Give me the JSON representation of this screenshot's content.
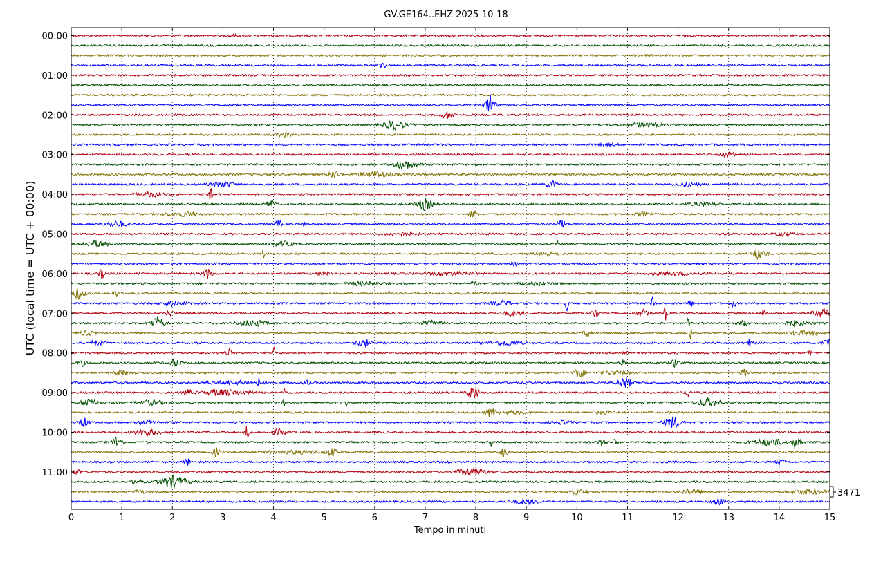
{
  "chart_data": {
    "type": "line",
    "title": "GV.GE164..EHZ 2025-10-18",
    "xlabel": "Tempo in minuti",
    "ylabel": "UTC (local time = UTC + 00:00)",
    "xlim": [
      0,
      15
    ],
    "x_ticks": [
      "0",
      "1",
      "2",
      "3",
      "4",
      "5",
      "6",
      "7",
      "8",
      "9",
      "10",
      "11",
      "12",
      "13",
      "14",
      "15"
    ],
    "y_ticks": [
      "00:00",
      "01:00",
      "02:00",
      "03:00",
      "04:00",
      "05:00",
      "06:00",
      "07:00",
      "08:00",
      "09:00",
      "10:00",
      "11:00"
    ],
    "grid": "vertical dotted lines at each minute",
    "colors": [
      "#b00010",
      "#004d00",
      "#7f7000",
      "#0000ff"
    ],
    "scale_label": "3471",
    "series": [
      {
        "row": 0,
        "events": [
          [
            3.2,
            1.0,
            0.1
          ]
        ]
      },
      {
        "row": 1,
        "events": []
      },
      {
        "row": 2,
        "events": []
      },
      {
        "row": 3,
        "events": [
          [
            6.15,
            5,
            0.07
          ]
        ]
      },
      {
        "row": 4,
        "events": []
      },
      {
        "row": 5,
        "events": []
      },
      {
        "row": 6,
        "events": []
      },
      {
        "row": 7,
        "events": [
          [
            8.28,
            14,
            0.09
          ]
        ]
      },
      {
        "row": 8,
        "events": [
          [
            7.45,
            5,
            0.12
          ]
        ]
      },
      {
        "row": 9,
        "events": [
          [
            6.4,
            6,
            0.2
          ],
          [
            11.3,
            2.5,
            0.45
          ]
        ]
      },
      {
        "row": 10,
        "events": [
          [
            4.2,
            3,
            0.15
          ]
        ]
      },
      {
        "row": 11,
        "events": [
          [
            10.6,
            1.5,
            0.2
          ]
        ]
      },
      {
        "row": 12,
        "events": [
          [
            13.0,
            2.5,
            0.15
          ]
        ]
      },
      {
        "row": 13,
        "events": [
          [
            6.6,
            6,
            0.2
          ]
        ]
      },
      {
        "row": 14,
        "events": [
          [
            5.2,
            5,
            0.1
          ],
          [
            6.0,
            4,
            0.3
          ]
        ]
      },
      {
        "row": 15,
        "events": [
          [
            3.0,
            4,
            0.2
          ],
          [
            9.5,
            5,
            0.1
          ],
          [
            12.2,
            2.5,
            0.2
          ]
        ]
      },
      {
        "row": 16,
        "events": [
          [
            1.6,
            3,
            0.25
          ],
          [
            2.75,
            9,
            0.05
          ]
        ]
      },
      {
        "row": 17,
        "events": [
          [
            3.95,
            6,
            0.08
          ],
          [
            6.98,
            8,
            0.14
          ],
          [
            12.5,
            1.5,
            0.3
          ]
        ]
      },
      {
        "row": 18,
        "events": [
          [
            2.2,
            3,
            0.3
          ],
          [
            7.95,
            6,
            0.07
          ],
          [
            11.3,
            3,
            0.1
          ]
        ]
      },
      {
        "row": 19,
        "events": [
          [
            0.9,
            4,
            0.2
          ],
          [
            4.1,
            5,
            0.06
          ],
          [
            4.6,
            6,
            0.02
          ],
          [
            9.7,
            6,
            0.08
          ]
        ]
      },
      {
        "row": 20,
        "events": [
          [
            6.5,
            2,
            0.3
          ],
          [
            14.1,
            3,
            0.15
          ]
        ]
      },
      {
        "row": 21,
        "events": [
          [
            0.5,
            4,
            0.25
          ],
          [
            4.2,
            3,
            0.2
          ],
          [
            9.6,
            6,
            0.03
          ]
        ]
      },
      {
        "row": 22,
        "events": [
          [
            3.8,
            8,
            0.02
          ],
          [
            9.4,
            3,
            0.2
          ],
          [
            13.6,
            8,
            0.12
          ]
        ]
      },
      {
        "row": 23,
        "events": [
          [
            8.75,
            5,
            0.07
          ]
        ]
      },
      {
        "row": 24,
        "events": [
          [
            0.6,
            6,
            0.07
          ],
          [
            2.7,
            6,
            0.1
          ],
          [
            5.0,
            2,
            0.15
          ],
          [
            7.5,
            2,
            0.4
          ],
          [
            12.0,
            2,
            0.5
          ]
        ]
      },
      {
        "row": 25,
        "events": [
          [
            5.8,
            3,
            0.3
          ],
          [
            7.98,
            4,
            0.06
          ],
          [
            9.2,
            2,
            0.4
          ]
        ]
      },
      {
        "row": 26,
        "events": [
          [
            0.15,
            7,
            0.12
          ],
          [
            0.9,
            5,
            0.07
          ],
          [
            6.3,
            5,
            0.02
          ]
        ]
      },
      {
        "row": 27,
        "events": [
          [
            2.0,
            3,
            0.2
          ],
          [
            8.5,
            3,
            0.2
          ],
          [
            9.8,
            10,
            0.03
          ],
          [
            11.5,
            10,
            0.03
          ],
          [
            12.25,
            4,
            0.07
          ],
          [
            13.1,
            9,
            0.03
          ]
        ]
      },
      {
        "row": 28,
        "events": [
          [
            1.95,
            3,
            0.1
          ],
          [
            8.7,
            3,
            0.2
          ],
          [
            10.35,
            7,
            0.06
          ],
          [
            11.3,
            5,
            0.1
          ],
          [
            11.75,
            10,
            0.03
          ],
          [
            13.7,
            6,
            0.05
          ],
          [
            14.85,
            8,
            0.15
          ]
        ]
      },
      {
        "row": 29,
        "events": [
          [
            1.7,
            9,
            0.12
          ],
          [
            3.6,
            4,
            0.25
          ],
          [
            7.1,
            3,
            0.2
          ],
          [
            13.3,
            4,
            0.07
          ],
          [
            14.3,
            3,
            0.3
          ],
          [
            12.2,
            8,
            0.02
          ]
        ]
      },
      {
        "row": 30,
        "events": [
          [
            0.3,
            3,
            0.15
          ],
          [
            10.2,
            5,
            0.08
          ],
          [
            14.5,
            3,
            0.3
          ],
          [
            12.25,
            8,
            0.02
          ]
        ]
      },
      {
        "row": 31,
        "events": [
          [
            0.5,
            3,
            0.15
          ],
          [
            5.8,
            5,
            0.15
          ],
          [
            8.6,
            3,
            0.3
          ],
          [
            13.4,
            5,
            0.07
          ],
          [
            14.95,
            6,
            0.08
          ]
        ]
      },
      {
        "row": 32,
        "events": [
          [
            3.1,
            6,
            0.07
          ],
          [
            10.95,
            4,
            0.05
          ],
          [
            14.6,
            6,
            0.03
          ],
          [
            4.0,
            14,
            0.02
          ]
        ]
      },
      {
        "row": 33,
        "events": [
          [
            0.2,
            5,
            0.06
          ],
          [
            2.05,
            5,
            0.1
          ],
          [
            11.95,
            6,
            0.07
          ],
          [
            10.9,
            4,
            0.05
          ]
        ]
      },
      {
        "row": 34,
        "events": [
          [
            1.0,
            3,
            0.15
          ],
          [
            10.05,
            7,
            0.1
          ],
          [
            13.3,
            5,
            0.06
          ],
          [
            10.75,
            2,
            0.3
          ]
        ]
      },
      {
        "row": 35,
        "events": [
          [
            3.2,
            2,
            0.6
          ],
          [
            4.65,
            4,
            0.05
          ],
          [
            10.95,
            8,
            0.12
          ],
          [
            3.7,
            7,
            0.02
          ]
        ]
      },
      {
        "row": 36,
        "events": [
          [
            2.3,
            6,
            0.06
          ],
          [
            3.0,
            4,
            0.4
          ],
          [
            7.95,
            10,
            0.1
          ],
          [
            12.2,
            7,
            0.05
          ],
          [
            4.2,
            9,
            0.02
          ]
        ]
      },
      {
        "row": 37,
        "events": [
          [
            0.35,
            6,
            0.15
          ],
          [
            1.6,
            3,
            0.25
          ],
          [
            12.6,
            6,
            0.2
          ],
          [
            5.45,
            6,
            0.02
          ],
          [
            4.2,
            8,
            0.02
          ]
        ]
      },
      {
        "row": 38,
        "events": [
          [
            8.3,
            7,
            0.1
          ],
          [
            10.5,
            2,
            0.2
          ],
          [
            8.8,
            2,
            0.3
          ]
        ]
      },
      {
        "row": 39,
        "events": [
          [
            0.25,
            6,
            0.1
          ],
          [
            1.5,
            2.5,
            0.2
          ],
          [
            11.9,
            8,
            0.15
          ],
          [
            9.7,
            2,
            0.2
          ]
        ]
      },
      {
        "row": 40,
        "events": [
          [
            1.5,
            4,
            0.25
          ],
          [
            3.5,
            5,
            0.05
          ],
          [
            4.1,
            4,
            0.15
          ],
          [
            3.45,
            9,
            0.02
          ]
        ]
      },
      {
        "row": 41,
        "events": [
          [
            0.9,
            8,
            0.1
          ],
          [
            10.5,
            5,
            0.07
          ],
          [
            10.75,
            4,
            0.05
          ],
          [
            13.8,
            5,
            0.3
          ],
          [
            14.35,
            10,
            0.07
          ],
          [
            8.3,
            7,
            0.02
          ]
        ]
      },
      {
        "row": 42,
        "events": [
          [
            2.85,
            6,
            0.08
          ],
          [
            5.15,
            5,
            0.1
          ],
          [
            8.55,
            6,
            0.08
          ],
          [
            4.4,
            2,
            0.6
          ]
        ]
      },
      {
        "row": 43,
        "events": [
          [
            2.3,
            5,
            0.06
          ],
          [
            14.05,
            3,
            0.1
          ]
        ]
      },
      {
        "row": 44,
        "events": [
          [
            0.1,
            3,
            0.1
          ],
          [
            7.9,
            5,
            0.3
          ]
        ]
      },
      {
        "row": 45,
        "events": [
          [
            2.0,
            9,
            0.25
          ],
          [
            1.3,
            3,
            0.1
          ]
        ]
      },
      {
        "row": 46,
        "events": [
          [
            1.35,
            3,
            0.1
          ],
          [
            10.0,
            3,
            0.2
          ],
          [
            12.3,
            3,
            0.25
          ],
          [
            14.6,
            3,
            0.4
          ]
        ]
      },
      {
        "row": 47,
        "events": [
          [
            9.0,
            3,
            0.25
          ],
          [
            12.8,
            5,
            0.1
          ]
        ]
      }
    ]
  }
}
